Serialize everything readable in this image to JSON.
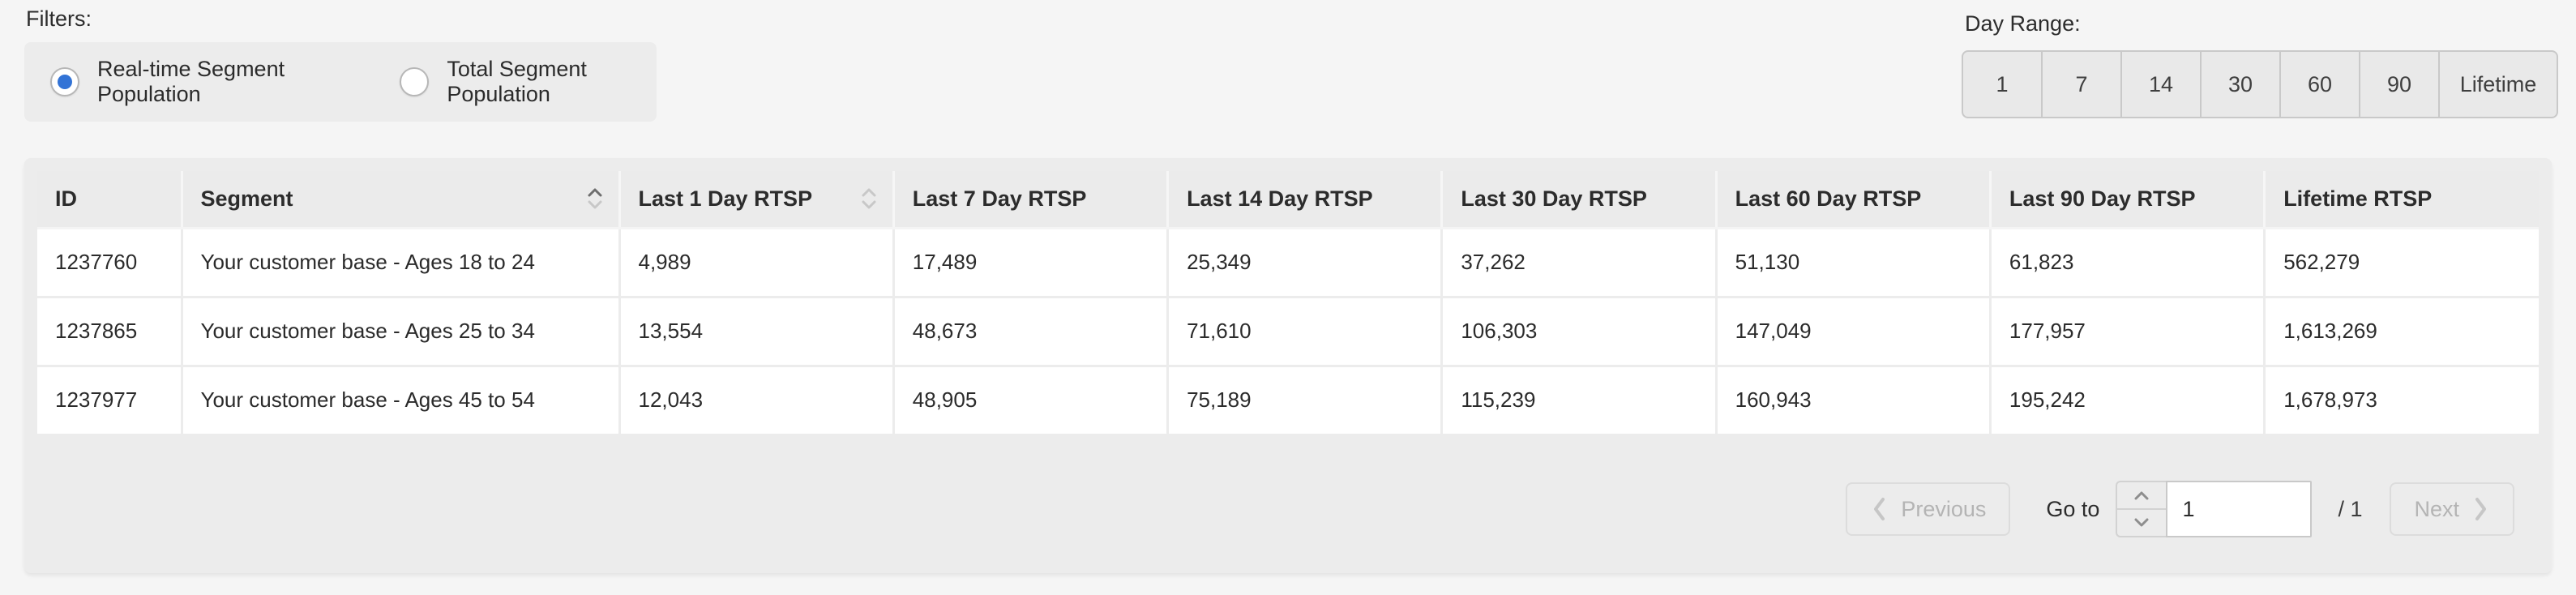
{
  "filters": {
    "label": "Filters:",
    "options": [
      {
        "label": "Real-time Segment Population",
        "selected": true
      },
      {
        "label": "Total Segment Population",
        "selected": false
      }
    ]
  },
  "day_range": {
    "label": "Day Range:",
    "options": [
      "1",
      "7",
      "14",
      "30",
      "60",
      "90",
      "Lifetime"
    ]
  },
  "table": {
    "columns": [
      {
        "label": "ID",
        "sort": null
      },
      {
        "label": "Segment",
        "sort": "asc"
      },
      {
        "label": "Last 1 Day RTSP",
        "sort": "none"
      },
      {
        "label": "Last 7 Day RTSP",
        "sort": null
      },
      {
        "label": "Last 14 Day RTSP",
        "sort": null
      },
      {
        "label": "Last 30 Day RTSP",
        "sort": null
      },
      {
        "label": "Last 60 Day RTSP",
        "sort": null
      },
      {
        "label": "Last 90 Day RTSP",
        "sort": null
      },
      {
        "label": "Lifetime RTSP",
        "sort": null
      }
    ],
    "rows": [
      [
        "1237760",
        "Your customer base - Ages 18 to 24",
        "4,989",
        "17,489",
        "25,349",
        "37,262",
        "51,130",
        "61,823",
        "562,279"
      ],
      [
        "1237865",
        "Your customer base - Ages 25 to 34",
        "13,554",
        "48,673",
        "71,610",
        "106,303",
        "147,049",
        "177,957",
        "1,613,269"
      ],
      [
        "1237977",
        "Your customer base - Ages 45 to 54",
        "12,043",
        "48,905",
        "75,189",
        "115,239",
        "160,943",
        "195,242",
        "1,678,973"
      ]
    ]
  },
  "pagination": {
    "previous_label": "Previous",
    "goto_label": "Go to",
    "page_value": "1",
    "total_label": "/ 1",
    "next_label": "Next"
  },
  "icons": {
    "sort": "sort-chevrons",
    "previous": "chevron-left",
    "next": "chevron-right",
    "stepper_up": "chevron-up",
    "stepper_down": "chevron-down"
  },
  "colors": {
    "accent_blue": "#3273d6",
    "page_bg": "#f5f5f5",
    "card_bg": "#ececec",
    "disabled_text": "#b4b4b4"
  }
}
